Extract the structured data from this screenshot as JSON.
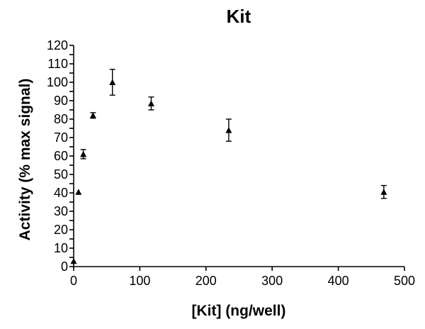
{
  "chart_data": {
    "type": "scatter",
    "title": "Kit",
    "xlabel": "[Kit] (ng/well)",
    "ylabel": "Activity (% max signal)",
    "xlim": [
      0,
      500
    ],
    "ylim": [
      0,
      120
    ],
    "xticks": [
      0,
      100,
      200,
      300,
      400,
      500
    ],
    "yticks": [
      0,
      5,
      10,
      15,
      20,
      25,
      30,
      35,
      40,
      45,
      50,
      55,
      60,
      65,
      70,
      75,
      80,
      85,
      90,
      95,
      100,
      105,
      110,
      115,
      120
    ],
    "yticklabels": [
      "0",
      "",
      "10",
      "",
      "20",
      "",
      "30",
      "",
      "40",
      "",
      "50",
      "",
      "60",
      "",
      "70",
      "",
      "80",
      "",
      "90",
      "",
      "100",
      "",
      "110",
      "",
      "120"
    ],
    "grid": false,
    "marker": "triangle",
    "series": [
      {
        "x": [
          0,
          7.3,
          14.6,
          29.3,
          58.6,
          117.2,
          234.4,
          468.8
        ],
        "y": [
          3,
          40.5,
          61,
          82,
          100,
          88.5,
          74,
          40.5
        ],
        "error": [
          0,
          0,
          2.5,
          1.5,
          7,
          3.5,
          6,
          3.5
        ]
      }
    ]
  }
}
